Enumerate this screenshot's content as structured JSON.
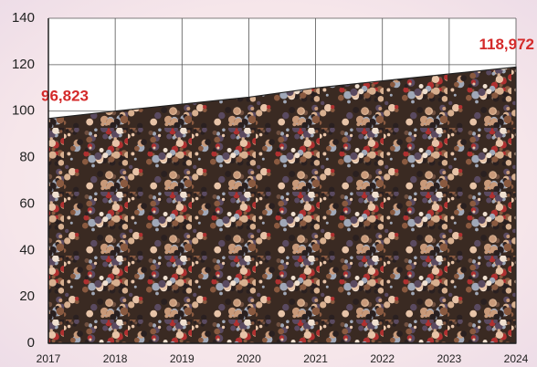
{
  "chart_data": {
    "type": "area",
    "x": [
      2017,
      2018,
      2019,
      2020,
      2021,
      2022,
      2023,
      2024
    ],
    "values": [
      96.823,
      100,
      103,
      106,
      110,
      113,
      116,
      118.972
    ],
    "value_labels": [
      "96,823",
      null,
      null,
      null,
      null,
      null,
      null,
      "118,972"
    ],
    "xlim": [
      2017,
      2024
    ],
    "xticks": [
      2017,
      2018,
      2019,
      2020,
      2021,
      2022,
      2023,
      2024
    ],
    "ylim": [
      0,
      140
    ],
    "yticks": [
      0,
      20,
      40,
      60,
      80,
      100,
      120,
      140
    ],
    "grid": true,
    "label_color": "#d42a2a"
  }
}
